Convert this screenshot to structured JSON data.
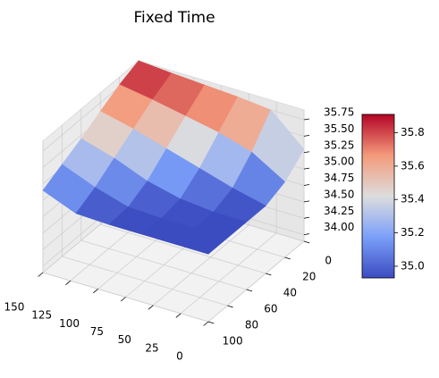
{
  "chart_data": {
    "type": "surface",
    "title": "Fixed Time",
    "x": [
      0,
      30,
      60,
      90,
      120,
      150
    ],
    "y": [
      0,
      20,
      40,
      60,
      80,
      100
    ],
    "z": [
      [
        35.3,
        35.75,
        35.8,
        35.83,
        35.86,
        35.9
      ],
      [
        35.05,
        35.35,
        35.5,
        35.6,
        35.7,
        35.78
      ],
      [
        34.93,
        35.05,
        35.2,
        35.35,
        35.5,
        35.62
      ],
      [
        34.93,
        34.93,
        34.98,
        35.1,
        35.3,
        35.45
      ],
      [
        34.93,
        34.93,
        34.93,
        34.95,
        35.1,
        35.3
      ],
      [
        34.93,
        34.93,
        34.93,
        34.93,
        34.95,
        35.15
      ]
    ],
    "colormap": "coolwarm",
    "xlim": [
      0,
      150
    ],
    "xticks": [
      0,
      25,
      50,
      75,
      100,
      125,
      150
    ],
    "ylim": [
      0,
      100
    ],
    "yticks": [
      0,
      20,
      40,
      60,
      80,
      100
    ],
    "zlim": [
      33.9,
      35.9
    ],
    "zticks": [
      {
        "value": 34,
        "label": "34.00"
      },
      {
        "value": 34.25,
        "label": "34.25"
      },
      {
        "value": 34.5,
        "label": "34.50"
      },
      {
        "value": 34.75,
        "label": "34.75"
      },
      {
        "value": 35,
        "label": "35.00"
      },
      {
        "value": 35.25,
        "label": "35.25"
      },
      {
        "value": 35.5,
        "label": "35.50"
      },
      {
        "value": 35.75,
        "label": "35.75"
      }
    ],
    "clim": [
      34.93,
      35.91
    ],
    "cticks": [
      {
        "value": 35,
        "label": "35.0"
      },
      {
        "value": 35.2,
        "label": "35.2"
      },
      {
        "value": 35.4,
        "label": "35.4"
      },
      {
        "value": 35.6,
        "label": "35.6"
      },
      {
        "value": 35.8,
        "label": "35.8"
      }
    ],
    "grid": true
  }
}
